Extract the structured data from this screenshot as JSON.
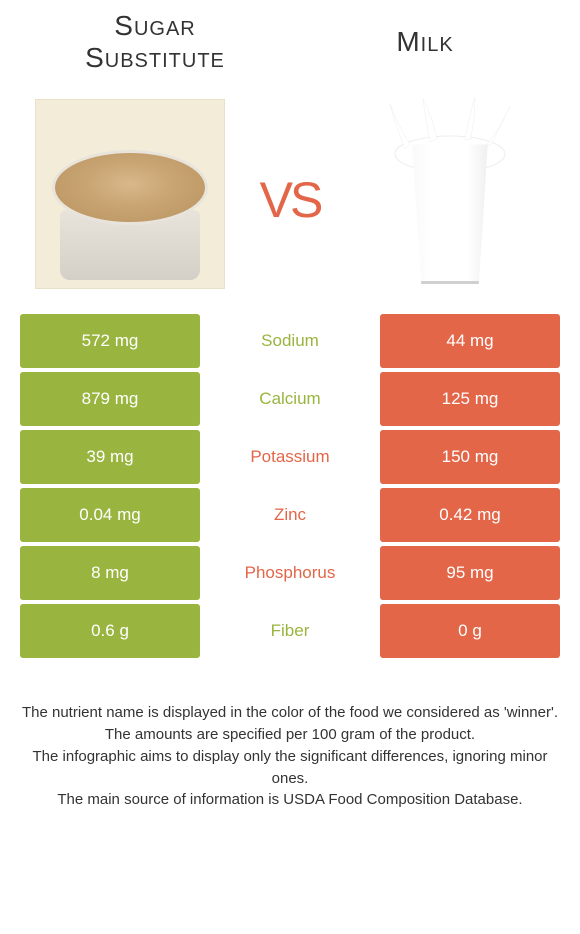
{
  "colors": {
    "left_bg": "#99b53f",
    "right_bg": "#e36648",
    "mid_left": "#99b53f",
    "mid_right": "#e36648",
    "vs": "#e36648",
    "text": "#333333"
  },
  "header": {
    "left_title": "Sugar Substitute",
    "right_title": "Milk",
    "vs_label": "vs"
  },
  "rows": [
    {
      "left": "572 mg",
      "label": "Sodium",
      "right": "44 mg",
      "winner": "left"
    },
    {
      "left": "879 mg",
      "label": "Calcium",
      "right": "125 mg",
      "winner": "left"
    },
    {
      "left": "39 mg",
      "label": "Potassium",
      "right": "150 mg",
      "winner": "right"
    },
    {
      "left": "0.04 mg",
      "label": "Zinc",
      "right": "0.42 mg",
      "winner": "right"
    },
    {
      "left": "8 mg",
      "label": "Phosphorus",
      "right": "95 mg",
      "winner": "right"
    },
    {
      "left": "0.6 g",
      "label": "Fiber",
      "right": "0 g",
      "winner": "left"
    }
  ],
  "footer": {
    "line1": "The nutrient name is displayed in the color of the food we considered as 'winner'.",
    "line2": "The amounts are specified per 100 gram of the product.",
    "line3": "The infographic aims to display only the significant differences, ignoring minor ones.",
    "line4": "The main source of information is USDA Food Composition Database."
  }
}
